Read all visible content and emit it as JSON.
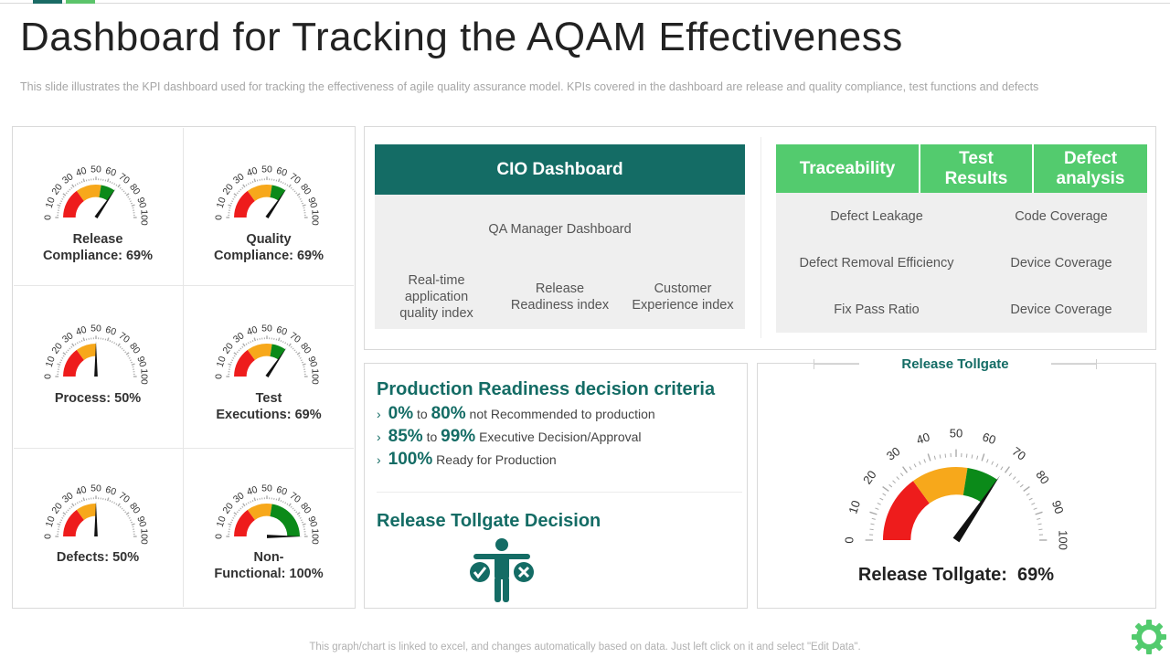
{
  "header": {
    "title": "Dashboard for Tracking the AQAM Effectiveness",
    "subtitle": "This slide illustrates the KPI dashboard used for tracking the effectiveness of agile quality assurance model. KPIs covered in the dashboard are release and quality compliance, test functions and defects"
  },
  "chart_data": [
    {
      "type": "gauge",
      "name": "Release Compliance",
      "label": "Release\nCompliance: 69%",
      "value": 69,
      "min": 0,
      "max": 100,
      "ticks": [
        "0",
        "10",
        "20",
        "30",
        "40",
        "50",
        "60",
        "70",
        "80",
        "90",
        "100"
      ]
    },
    {
      "type": "gauge",
      "name": "Quality Compliance",
      "label": "Quality\nCompliance: 69%",
      "value": 69,
      "min": 0,
      "max": 100,
      "ticks": [
        "0",
        "10",
        "20",
        "30",
        "40",
        "50",
        "60",
        "70",
        "80",
        "90",
        "100"
      ]
    },
    {
      "type": "gauge",
      "name": "Process",
      "label": "Process: 50%",
      "value": 50,
      "min": 0,
      "max": 100,
      "ticks": [
        "0",
        "10",
        "20",
        "30",
        "40",
        "50",
        "60",
        "70",
        "80",
        "90",
        "100"
      ]
    },
    {
      "type": "gauge",
      "name": "Test Executions",
      "label": "Test\nExecutions: 69%",
      "value": 69,
      "min": 0,
      "max": 100,
      "ticks": [
        "0",
        "10",
        "20",
        "30",
        "40",
        "50",
        "60",
        "70",
        "80",
        "90",
        "100"
      ]
    },
    {
      "type": "gauge",
      "name": "Defects",
      "label": "Defects: 50%",
      "value": 50,
      "min": 0,
      "max": 100,
      "ticks": [
        "0",
        "10",
        "20",
        "30",
        "40",
        "50",
        "60",
        "70",
        "80",
        "90",
        "100"
      ]
    },
    {
      "type": "gauge",
      "name": "Non-Functional",
      "label": "Non-\nFunctional: 100%",
      "value": 100,
      "min": 0,
      "max": 100,
      "ticks": [
        "0",
        "10",
        "20",
        "30",
        "40",
        "50",
        "60",
        "70",
        "80",
        "90",
        "100"
      ]
    },
    {
      "type": "gauge",
      "name": "Release Tollgate",
      "label": "Release Tollgate:  69%",
      "value": 69,
      "min": 0,
      "max": 100,
      "ticks": [
        "0",
        "10",
        "20",
        "30",
        "40",
        "50",
        "60",
        "70",
        "80",
        "90",
        "100"
      ]
    }
  ],
  "gauge_colors": {
    "red": "#ee1c1c",
    "orange": "#f7a81b",
    "green": "#0b8a19",
    "needle": "#111111",
    "tick": "#aaaaaa"
  },
  "cio": {
    "header": "CIO Dashboard",
    "qa_manager": "QA Manager  Dashboard",
    "items": [
      "Real-time\napplication\nquality index",
      "Release\nReadiness index",
      "Customer\nExperience index"
    ]
  },
  "trace": {
    "headers": [
      "Traceability",
      "Test\nResults",
      "Defect\nanalysis"
    ],
    "left": [
      "Defect Leakage",
      "Defect Removal Efficiency",
      "Fix Pass Ratio"
    ],
    "right": [
      "Code Coverage",
      "Device Coverage",
      "Device Coverage"
    ]
  },
  "criteria": {
    "title": "Production Readiness decision criteria",
    "rows": [
      {
        "a": "0%",
        "to": " to ",
        "b": "80%",
        "text": " not Recommended to production"
      },
      {
        "a": "85%",
        "to": " to ",
        "b": "99%",
        "text": " Executive Decision/Approval"
      },
      {
        "a": "100%",
        "to": "",
        "b": "",
        "text": " Ready for Production"
      }
    ],
    "decision_title": "Release Tollgate  Decision"
  },
  "tollgate": {
    "panel_title": "Release Tollgate"
  },
  "footer": "This graph/chart is linked to excel, and changes automatically based on data. Just left click on it and select \"Edit Data\"."
}
